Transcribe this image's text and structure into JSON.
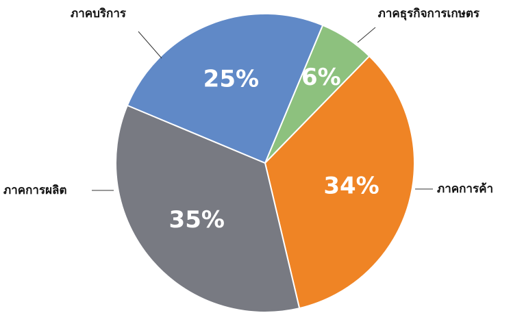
{
  "chart_data": {
    "type": "pie",
    "categories": [
      "ภาคธุรกิจการเกษตร",
      "ภาคการค้า",
      "ภาคการผลิต",
      "ภาคบริการ"
    ],
    "values": [
      6,
      34,
      35,
      25
    ],
    "value_labels": [
      "6%",
      "34%",
      "35%",
      "25%"
    ],
    "colors": [
      "#8dc17e",
      "#ef8425",
      "#787a82",
      "#6089c7"
    ]
  }
}
